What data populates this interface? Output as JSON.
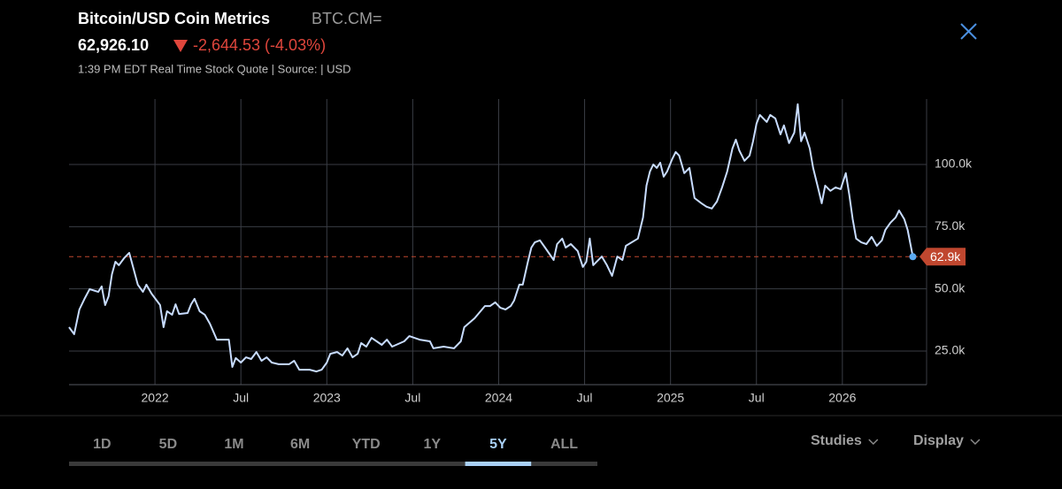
{
  "header": {
    "title": "Bitcoin/USD Coin Metrics",
    "symbol": "BTC.CM=",
    "price": "62,926.10",
    "change": "-2,644.53 (-4.03%)",
    "quote_info": "1:39 PM EDT Real Time Stock Quote | Source:  | USD"
  },
  "chart_data": {
    "type": "line",
    "color": "#c8dcff",
    "grid": true,
    "x": [
      2021.5,
      2021.53,
      2021.56,
      2021.59,
      2021.62,
      2021.67,
      2021.69,
      2021.71,
      2021.73,
      2021.75,
      2021.77,
      2021.79,
      2021.82,
      2021.85,
      2021.87,
      2021.9,
      2021.93,
      2021.95,
      2021.98,
      2022.03,
      2022.05,
      2022.07,
      2022.1,
      2022.12,
      2022.14,
      2022.19,
      2022.21,
      2022.23,
      2022.26,
      2022.29,
      2022.32,
      2022.36,
      2022.41,
      2022.43,
      2022.45,
      2022.47,
      2022.5,
      2022.53,
      2022.56,
      2022.59,
      2022.62,
      2022.65,
      2022.68,
      2022.72,
      2022.78,
      2022.81,
      2022.84,
      2022.9,
      2022.94,
      2022.97,
      2023.0,
      2023.02,
      2023.06,
      2023.09,
      2023.12,
      2023.15,
      2023.18,
      2023.2,
      2023.23,
      2023.26,
      2023.29,
      2023.32,
      2023.35,
      2023.38,
      2023.45,
      2023.48,
      2023.54,
      2023.6,
      2023.62,
      2023.68,
      2023.74,
      2023.78,
      2023.8,
      2023.86,
      2023.92,
      2023.95,
      2023.98,
      2024.01,
      2024.04,
      2024.07,
      2024.09,
      2024.12,
      2024.14,
      2024.17,
      2024.19,
      2024.21,
      2024.24,
      2024.27,
      2024.32,
      2024.34,
      2024.37,
      2024.39,
      2024.42,
      2024.46,
      2024.49,
      2024.51,
      2024.53,
      2024.55,
      2024.6,
      2024.63,
      2024.66,
      2024.69,
      2024.72,
      2024.74,
      2024.81,
      2024.84,
      2024.86,
      2024.88,
      2024.9,
      2024.92,
      2024.94,
      2024.96,
      2024.98,
      2025.01,
      2025.03,
      2025.05,
      2025.08,
      2025.11,
      2025.14,
      2025.18,
      2025.21,
      2025.24,
      2025.27,
      2025.3,
      2025.33,
      2025.36,
      2025.38,
      2025.4,
      2025.43,
      2025.46,
      2025.48,
      2025.5,
      2025.52,
      2025.56,
      2025.58,
      2025.61,
      2025.64,
      2025.66,
      2025.69,
      2025.72,
      2025.74,
      2025.76,
      2025.78,
      2025.81,
      2025.83,
      2025.86,
      2025.88,
      2025.9,
      2025.93,
      2025.96,
      2025.99,
      2026.02,
      2026.04,
      2026.06,
      2026.08,
      2026.11,
      2026.14,
      2026.17,
      2026.2,
      2026.23,
      2026.25,
      2026.28,
      2026.31,
      2026.33,
      2026.36,
      2026.38,
      2026.41
    ],
    "values": [
      34600,
      31800,
      41700,
      46000,
      49900,
      48800,
      51000,
      43500,
      47000,
      55900,
      60900,
      59500,
      62300,
      64500,
      59500,
      51700,
      48800,
      51700,
      48100,
      43500,
      34600,
      41000,
      39600,
      43800,
      39900,
      40300,
      43800,
      46000,
      41000,
      39600,
      36000,
      29600,
      29600,
      29600,
      18600,
      22200,
      20400,
      22500,
      21800,
      24600,
      21100,
      22500,
      20400,
      19700,
      19700,
      21100,
      17500,
      17500,
      16800,
      17500,
      20400,
      23900,
      24600,
      23200,
      26100,
      22500,
      23900,
      28200,
      26800,
      30300,
      28900,
      27500,
      29600,
      26800,
      28900,
      31000,
      29600,
      28900,
      26100,
      26800,
      26100,
      28900,
      34600,
      38200,
      43100,
      43100,
      44600,
      42400,
      41700,
      43100,
      45300,
      51700,
      51700,
      60900,
      66600,
      68700,
      69500,
      66600,
      61600,
      68000,
      70200,
      66600,
      68000,
      65200,
      58800,
      60900,
      70200,
      59500,
      63000,
      59500,
      55200,
      63000,
      61600,
      67300,
      70200,
      78700,
      91500,
      97200,
      100000,
      98600,
      100700,
      95100,
      97200,
      102200,
      105000,
      103600,
      96500,
      98600,
      86500,
      84400,
      83000,
      82300,
      85100,
      90800,
      97200,
      106400,
      110000,
      105700,
      101500,
      103600,
      109300,
      116400,
      119900,
      117100,
      119900,
      118500,
      112100,
      115700,
      108600,
      112800,
      124200,
      109300,
      112800,
      106400,
      98600,
      90100,
      84400,
      91500,
      89400,
      90800,
      90100,
      96500,
      87900,
      78000,
      70200,
      68700,
      68000,
      70900,
      67300,
      69500,
      73700,
      76600,
      78700,
      81500,
      78000,
      73700,
      62926.1
    ],
    "xlim": [
      2021.5,
      2026.49
    ],
    "ylim": [
      11500,
      126300
    ],
    "xticks": [
      {
        "value": 2022,
        "label": "2022"
      },
      {
        "value": 2022.5,
        "label": "Jul"
      },
      {
        "value": 2023,
        "label": "2023"
      },
      {
        "value": 2023.5,
        "label": "Jul"
      },
      {
        "value": 2024,
        "label": "2024"
      },
      {
        "value": 2024.5,
        "label": "Jul"
      },
      {
        "value": 2025,
        "label": "2025"
      },
      {
        "value": 2025.5,
        "label": "Jul"
      },
      {
        "value": 2026,
        "label": "2026"
      }
    ],
    "yticks": [
      {
        "value": 25000,
        "label": "25.0k"
      },
      {
        "value": 50000,
        "label": "50.0k"
      },
      {
        "value": 75000,
        "label": "75.0k"
      },
      {
        "value": 100000,
        "label": "100.0k"
      }
    ],
    "reference_line": {
      "value": 62926.1,
      "label": "62.9k",
      "color": "#c0472f"
    }
  },
  "range_tabs": {
    "items": [
      "1D",
      "5D",
      "1M",
      "6M",
      "YTD",
      "1Y",
      "5Y",
      "ALL"
    ],
    "active": "5Y"
  },
  "menu": [
    "Studies",
    "Display"
  ]
}
